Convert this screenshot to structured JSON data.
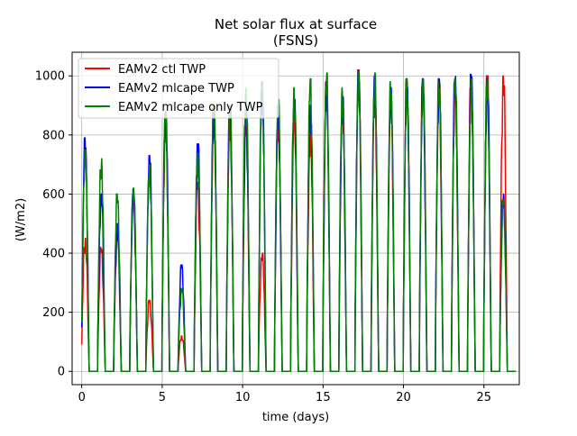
{
  "chart_data": {
    "type": "line",
    "title": "Net solar flux at surface",
    "subtitle": "(FSNS)",
    "xlabel": "time (days)",
    "ylabel": "(W/m2)",
    "xlim": [
      -0.6,
      27.2
    ],
    "ylim": [
      -45,
      1080
    ],
    "xticks": [
      0,
      5,
      10,
      15,
      20,
      25
    ],
    "yticks": [
      0,
      200,
      400,
      600,
      800,
      1000
    ],
    "grid": true,
    "legend_position": "top-left",
    "series": [
      {
        "name": "EAMv2 ctl TWP",
        "color": "#ff0000",
        "daily_peaks": [
          450,
          420,
          460,
          620,
          240,
          860,
          120,
          640,
          900,
          880,
          850,
          400,
          870,
          880,
          800,
          980,
          900,
          1020,
          940,
          950,
          980,
          990,
          990,
          980,
          1000,
          1000,
          1000
        ]
      },
      {
        "name": "EAMv2 mlcape TWP",
        "color": "#0000ff",
        "daily_peaks": [
          790,
          600,
          500,
          600,
          730,
          880,
          360,
          770,
          890,
          890,
          880,
          980,
          880,
          920,
          900,
          980,
          930,
          1020,
          1000,
          960,
          990,
          990,
          990,
          1000,
          1005,
          990,
          600
        ]
      },
      {
        "name": "EAMv2 mlcape only TWP",
        "color": "#008000",
        "daily_peaks": [
          750,
          720,
          600,
          620,
          700,
          870,
          280,
          740,
          900,
          900,
          960,
          980,
          920,
          960,
          990,
          1010,
          960,
          1015,
          1010,
          980,
          990,
          990,
          980,
          990,
          990,
          990,
          580
        ]
      }
    ]
  }
}
